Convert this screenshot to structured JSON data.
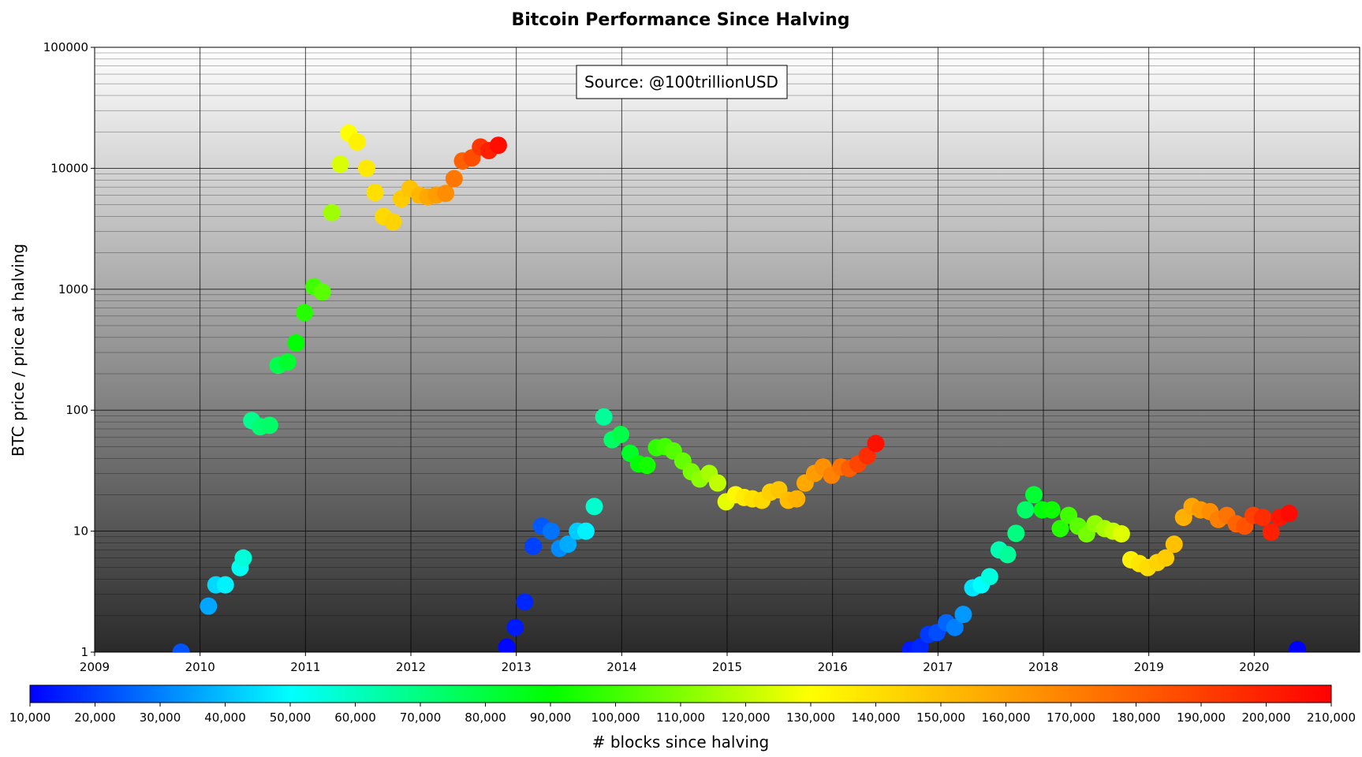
{
  "chart_data": {
    "type": "scatter",
    "title": "Bitcoin Performance Since Halving",
    "xlabel": "",
    "ylabel": "BTC price / price at halving",
    "x_ticks": [
      "2009",
      "2010",
      "2011",
      "2012",
      "2013",
      "2014",
      "2015",
      "2016",
      "2017",
      "2018",
      "2019",
      "2020"
    ],
    "xlim": [
      2009.0,
      2021.0
    ],
    "y_scale": "log",
    "y_ticks": [
      "1",
      "10",
      "100",
      "1000",
      "10000",
      "100000"
    ],
    "ylim": [
      1,
      100000
    ],
    "grid": true,
    "annotation": "Source: @100trillionUSD",
    "colorbar": {
      "label": "# blocks since halving",
      "min": 10000,
      "max": 210000,
      "ticks": [
        "10,000",
        "20,000",
        "30,000",
        "40,000",
        "50,000",
        "60,000",
        "70,000",
        "80,000",
        "90,000",
        "100,000",
        "110,000",
        "120,000",
        "130,000",
        "140,000",
        "150,000",
        "160,000",
        "170,000",
        "180,000",
        "190,000",
        "200,000",
        "210,000"
      ],
      "colors": [
        "#0000ff",
        "#00ffff",
        "#00ff00",
        "#ffff00",
        "#ff8000",
        "#ff0000"
      ]
    },
    "series": [
      {
        "points": [
          {
            "x": 2009.82,
            "y": 1.0,
            "blocks": 23000
          },
          {
            "x": 2010.08,
            "y": 2.4,
            "blocks": 36000
          },
          {
            "x": 2010.15,
            "y": 3.6,
            "blocks": 44000
          },
          {
            "x": 2010.24,
            "y": 3.6,
            "blocks": 48000
          },
          {
            "x": 2010.38,
            "y": 5.0,
            "blocks": 52000
          },
          {
            "x": 2010.41,
            "y": 6.0,
            "blocks": 56000
          },
          {
            "x": 2010.49,
            "y": 82,
            "blocks": 68000
          },
          {
            "x": 2010.57,
            "y": 73,
            "blocks": 72000
          },
          {
            "x": 2010.66,
            "y": 75,
            "blocks": 74000
          },
          {
            "x": 2010.74,
            "y": 235,
            "blocks": 78000
          },
          {
            "x": 2010.83,
            "y": 250,
            "blocks": 83000
          },
          {
            "x": 2010.91,
            "y": 360,
            "blocks": 90000
          },
          {
            "x": 2010.99,
            "y": 640,
            "blocks": 96000
          },
          {
            "x": 2011.08,
            "y": 1050,
            "blocks": 100000
          },
          {
            "x": 2011.16,
            "y": 950,
            "blocks": 104000
          },
          {
            "x": 2011.25,
            "y": 4300,
            "blocks": 115000
          },
          {
            "x": 2011.33,
            "y": 10800,
            "blocks": 124000
          },
          {
            "x": 2011.41,
            "y": 19500,
            "blocks": 130000
          },
          {
            "x": 2011.49,
            "y": 16500,
            "blocks": 134000
          },
          {
            "x": 2011.58,
            "y": 10000,
            "blocks": 137000
          },
          {
            "x": 2011.66,
            "y": 6300,
            "blocks": 140000
          },
          {
            "x": 2011.74,
            "y": 4000,
            "blocks": 142000
          },
          {
            "x": 2011.83,
            "y": 3600,
            "blocks": 144000
          },
          {
            "x": 2011.91,
            "y": 5600,
            "blocks": 146000
          },
          {
            "x": 2011.99,
            "y": 6800,
            "blocks": 149000
          },
          {
            "x": 2012.08,
            "y": 6000,
            "blocks": 153000
          },
          {
            "x": 2012.16,
            "y": 5800,
            "blocks": 157000
          },
          {
            "x": 2012.24,
            "y": 6000,
            "blocks": 161000
          },
          {
            "x": 2012.33,
            "y": 6200,
            "blocks": 166000
          },
          {
            "x": 2012.41,
            "y": 8200,
            "blocks": 173000
          },
          {
            "x": 2012.49,
            "y": 11500,
            "blocks": 180000
          },
          {
            "x": 2012.58,
            "y": 12200,
            "blocks": 186000
          },
          {
            "x": 2012.66,
            "y": 15000,
            "blocks": 193000
          },
          {
            "x": 2012.74,
            "y": 14000,
            "blocks": 200000
          },
          {
            "x": 2012.83,
            "y": 15500,
            "blocks": 206000
          },
          {
            "x": 2012.91,
            "y": 1.1,
            "blocks": 11000
          },
          {
            "x": 2012.99,
            "y": 1.6,
            "blocks": 14000
          },
          {
            "x": 2013.08,
            "y": 2.6,
            "blocks": 16000
          },
          {
            "x": 2013.16,
            "y": 7.5,
            "blocks": 20000
          },
          {
            "x": 2013.24,
            "y": 11,
            "blocks": 24000
          },
          {
            "x": 2013.33,
            "y": 10,
            "blocks": 28000
          },
          {
            "x": 2013.41,
            "y": 7.2,
            "blocks": 32000
          },
          {
            "x": 2013.49,
            "y": 7.8,
            "blocks": 37000
          },
          {
            "x": 2013.58,
            "y": 10,
            "blocks": 42000
          },
          {
            "x": 2013.66,
            "y": 10,
            "blocks": 48000
          },
          {
            "x": 2013.74,
            "y": 16,
            "blocks": 58000
          },
          {
            "x": 2013.83,
            "y": 88,
            "blocks": 66000
          },
          {
            "x": 2013.91,
            "y": 57,
            "blocks": 74000
          },
          {
            "x": 2013.99,
            "y": 63,
            "blocks": 79000
          },
          {
            "x": 2014.08,
            "y": 44,
            "blocks": 84000
          },
          {
            "x": 2014.16,
            "y": 36,
            "blocks": 89000
          },
          {
            "x": 2014.24,
            "y": 35,
            "blocks": 93000
          },
          {
            "x": 2014.33,
            "y": 49,
            "blocks": 97000
          },
          {
            "x": 2014.41,
            "y": 50,
            "blocks": 100000
          },
          {
            "x": 2014.49,
            "y": 46,
            "blocks": 103000
          },
          {
            "x": 2014.58,
            "y": 38,
            "blocks": 106000
          },
          {
            "x": 2014.66,
            "y": 31,
            "blocks": 109000
          },
          {
            "x": 2014.74,
            "y": 27,
            "blocks": 112000
          },
          {
            "x": 2014.83,
            "y": 30,
            "blocks": 116000
          },
          {
            "x": 2014.91,
            "y": 25,
            "blocks": 120000
          },
          {
            "x": 2014.99,
            "y": 17.5,
            "blocks": 126000
          },
          {
            "x": 2015.08,
            "y": 20,
            "blocks": 132000
          },
          {
            "x": 2015.16,
            "y": 19,
            "blocks": 136000
          },
          {
            "x": 2015.24,
            "y": 18.5,
            "blocks": 139000
          },
          {
            "x": 2015.33,
            "y": 18,
            "blocks": 142000
          },
          {
            "x": 2015.41,
            "y": 21,
            "blocks": 145000
          },
          {
            "x": 2015.49,
            "y": 22,
            "blocks": 148000
          },
          {
            "x": 2015.58,
            "y": 18,
            "blocks": 151000
          },
          {
            "x": 2015.66,
            "y": 18.5,
            "blocks": 154000
          },
          {
            "x": 2015.74,
            "y": 25,
            "blocks": 157000
          },
          {
            "x": 2015.83,
            "y": 30,
            "blocks": 161000
          },
          {
            "x": 2015.91,
            "y": 34,
            "blocks": 165000
          },
          {
            "x": 2015.99,
            "y": 29,
            "blocks": 169000
          },
          {
            "x": 2016.08,
            "y": 34,
            "blocks": 174000
          },
          {
            "x": 2016.16,
            "y": 33,
            "blocks": 181000
          },
          {
            "x": 2016.24,
            "y": 36,
            "blocks": 188000
          },
          {
            "x": 2016.33,
            "y": 42,
            "blocks": 196000
          },
          {
            "x": 2016.41,
            "y": 53,
            "blocks": 205000
          },
          {
            "x": 2016.74,
            "y": 1.05,
            "blocks": 14000
          },
          {
            "x": 2016.83,
            "y": 1.1,
            "blocks": 16000
          },
          {
            "x": 2016.91,
            "y": 1.4,
            "blocks": 19000
          },
          {
            "x": 2016.99,
            "y": 1.45,
            "blocks": 22000
          },
          {
            "x": 2017.08,
            "y": 1.75,
            "blocks": 26000
          },
          {
            "x": 2017.16,
            "y": 1.6,
            "blocks": 30000
          },
          {
            "x": 2017.24,
            "y": 2.05,
            "blocks": 34000
          },
          {
            "x": 2017.33,
            "y": 3.4,
            "blocks": 46000
          },
          {
            "x": 2017.41,
            "y": 3.6,
            "blocks": 50000
          },
          {
            "x": 2017.49,
            "y": 4.2,
            "blocks": 55000
          },
          {
            "x": 2017.58,
            "y": 7.0,
            "blocks": 62000
          },
          {
            "x": 2017.66,
            "y": 6.4,
            "blocks": 66000
          },
          {
            "x": 2017.74,
            "y": 9.6,
            "blocks": 70000
          },
          {
            "x": 2017.83,
            "y": 15,
            "blocks": 74000
          },
          {
            "x": 2017.91,
            "y": 20,
            "blocks": 82000
          },
          {
            "x": 2017.99,
            "y": 15,
            "blocks": 88000
          },
          {
            "x": 2018.08,
            "y": 15,
            "blocks": 92000
          },
          {
            "x": 2018.16,
            "y": 10.5,
            "blocks": 96000
          },
          {
            "x": 2018.24,
            "y": 13.5,
            "blocks": 100000
          },
          {
            "x": 2018.33,
            "y": 11,
            "blocks": 104000
          },
          {
            "x": 2018.41,
            "y": 9.5,
            "blocks": 108000
          },
          {
            "x": 2018.49,
            "y": 11.5,
            "blocks": 112000
          },
          {
            "x": 2018.58,
            "y": 10.5,
            "blocks": 116000
          },
          {
            "x": 2018.66,
            "y": 10,
            "blocks": 120000
          },
          {
            "x": 2018.74,
            "y": 9.5,
            "blocks": 125000
          },
          {
            "x": 2018.83,
            "y": 5.8,
            "blocks": 134000
          },
          {
            "x": 2018.91,
            "y": 5.4,
            "blocks": 138000
          },
          {
            "x": 2018.99,
            "y": 5.0,
            "blocks": 141000
          },
          {
            "x": 2019.08,
            "y": 5.5,
            "blocks": 144000
          },
          {
            "x": 2019.16,
            "y": 6.0,
            "blocks": 146000
          },
          {
            "x": 2019.24,
            "y": 7.8,
            "blocks": 150000
          },
          {
            "x": 2019.33,
            "y": 13,
            "blocks": 155000
          },
          {
            "x": 2019.41,
            "y": 16,
            "blocks": 158000
          },
          {
            "x": 2019.49,
            "y": 15,
            "blocks": 162000
          },
          {
            "x": 2019.58,
            "y": 14.5,
            "blocks": 166000
          },
          {
            "x": 2019.66,
            "y": 12.5,
            "blocks": 170000
          },
          {
            "x": 2019.74,
            "y": 13.5,
            "blocks": 174000
          },
          {
            "x": 2019.83,
            "y": 11.5,
            "blocks": 179000
          },
          {
            "x": 2019.91,
            "y": 11,
            "blocks": 184000
          },
          {
            "x": 2019.99,
            "y": 13.5,
            "blocks": 190000
          },
          {
            "x": 2020.08,
            "y": 13,
            "blocks": 196000
          },
          {
            "x": 2020.16,
            "y": 9.8,
            "blocks": 200000
          },
          {
            "x": 2020.24,
            "y": 13,
            "blocks": 203000
          },
          {
            "x": 2020.33,
            "y": 14,
            "blocks": 207000
          },
          {
            "x": 2020.41,
            "y": 1.05,
            "blocks": 10000
          }
        ]
      }
    ]
  }
}
